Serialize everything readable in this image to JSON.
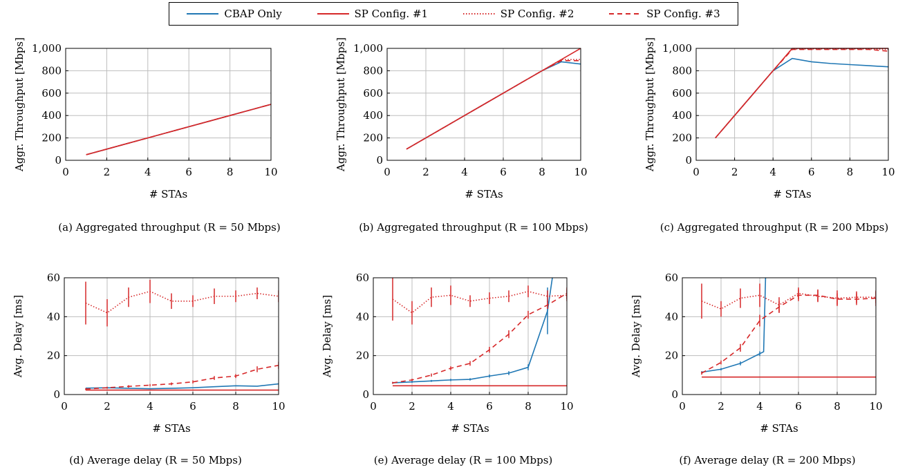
{
  "colors": {
    "blue": "#1f77b4",
    "red": "#d62728"
  },
  "legend": {
    "cbap": "CBAP Only",
    "sp1": "SP Config. #1",
    "sp2": "SP Config. #2",
    "sp3": "SP Config. #3"
  },
  "captions": {
    "a": "(a) Aggregated throughput (R = 50 Mbps)",
    "b": "(b) Aggregated throughput (R = 100 Mbps)",
    "c": "(c) Aggregated throughput (R = 200 Mbps)",
    "d": "(d) Average delay (R = 50 Mbps)",
    "e": "(e) Average delay (R = 100 Mbps)",
    "f": "(f) Average delay (R = 200 Mbps)"
  },
  "chart_data": [
    {
      "type": "line",
      "xlabel": "# STAs",
      "ylabel": "Aggr. Throughput [Mbps]",
      "xlim": [
        0,
        10
      ],
      "ylim": [
        0,
        1000
      ],
      "xticks": [
        0,
        2,
        4,
        6,
        8,
        10
      ],
      "yticks": [
        0,
        200,
        400,
        600,
        800,
        1000
      ],
      "ytick_labels": [
        "0",
        "200",
        "400",
        "600",
        "800",
        "1,000"
      ],
      "grid": true,
      "x": [
        1,
        2,
        3,
        4,
        5,
        6,
        7,
        8,
        9,
        10
      ],
      "series": [
        {
          "name": "CBAP Only",
          "style": "solid",
          "color": "blue",
          "values": [
            50,
            100,
            150,
            200,
            250,
            300,
            350,
            400,
            450,
            500
          ]
        },
        {
          "name": "SP Config. #1",
          "style": "solid",
          "color": "red",
          "values": [
            50,
            100,
            150,
            200,
            250,
            300,
            350,
            400,
            450,
            500
          ]
        },
        {
          "name": "SP Config. #2",
          "style": "dotted",
          "color": "red",
          "values": [
            50,
            100,
            150,
            200,
            250,
            300,
            350,
            400,
            450,
            500
          ]
        },
        {
          "name": "SP Config. #3",
          "style": "dashed",
          "color": "red",
          "values": [
            50,
            100,
            150,
            200,
            250,
            300,
            350,
            400,
            450,
            500
          ]
        }
      ]
    },
    {
      "type": "line",
      "xlabel": "# STAs",
      "ylabel": "Aggr. Throughput [Mbps]",
      "xlim": [
        0,
        10
      ],
      "ylim": [
        0,
        1000
      ],
      "xticks": [
        0,
        2,
        4,
        6,
        8,
        10
      ],
      "yticks": [
        0,
        200,
        400,
        600,
        800,
        1000
      ],
      "ytick_labels": [
        "0",
        "200",
        "400",
        "600",
        "800",
        "1,000"
      ],
      "grid": true,
      "x": [
        1,
        2,
        3,
        4,
        5,
        6,
        7,
        8,
        9,
        10
      ],
      "series": [
        {
          "name": "CBAP Only",
          "style": "solid",
          "color": "blue",
          "values": [
            100,
            200,
            300,
            400,
            500,
            600,
            700,
            800,
            880,
            860
          ]
        },
        {
          "name": "SP Config. #1",
          "style": "solid",
          "color": "red",
          "values": [
            100,
            200,
            300,
            400,
            500,
            600,
            700,
            800,
            900,
            1000
          ]
        },
        {
          "name": "SP Config. #2",
          "style": "dotted",
          "color": "red",
          "values": [
            100,
            200,
            300,
            400,
            500,
            600,
            700,
            800,
            900,
            900
          ]
        },
        {
          "name": "SP Config. #3",
          "style": "dashed",
          "color": "red",
          "values": [
            100,
            200,
            300,
            400,
            500,
            600,
            700,
            800,
            890,
            890
          ]
        }
      ]
    },
    {
      "type": "line",
      "xlabel": "# STAs",
      "ylabel": "Aggr. Throughput [Mbps]",
      "xlim": [
        0,
        10
      ],
      "ylim": [
        0,
        1000
      ],
      "xticks": [
        0,
        2,
        4,
        6,
        8,
        10
      ],
      "yticks": [
        0,
        200,
        400,
        600,
        800,
        1000
      ],
      "ytick_labels": [
        "0",
        "200",
        "400",
        "600",
        "800",
        "1,000"
      ],
      "grid": true,
      "x": [
        1,
        2,
        3,
        4,
        5,
        6,
        7,
        8,
        9,
        10
      ],
      "series": [
        {
          "name": "CBAP Only",
          "style": "solid",
          "color": "blue",
          "values": [
            200,
            400,
            600,
            800,
            910,
            880,
            865,
            855,
            845,
            835
          ]
        },
        {
          "name": "SP Config. #1",
          "style": "solid",
          "color": "red",
          "values": [
            200,
            400,
            600,
            800,
            1000,
            1000,
            1000,
            1000,
            1000,
            1000
          ]
        },
        {
          "name": "SP Config. #2",
          "style": "dotted",
          "color": "red",
          "values": [
            200,
            400,
            600,
            800,
            995,
            995,
            995,
            995,
            995,
            990
          ]
        },
        {
          "name": "SP Config. #3",
          "style": "dashed",
          "color": "red",
          "values": [
            200,
            400,
            600,
            800,
            990,
            990,
            990,
            990,
            990,
            975
          ]
        }
      ]
    },
    {
      "type": "line",
      "xlabel": "# STAs",
      "ylabel": "Avg. Delay [ms]",
      "xlim": [
        0,
        10
      ],
      "ylim": [
        0,
        60
      ],
      "xticks": [
        0,
        2,
        4,
        6,
        8,
        10
      ],
      "yticks": [
        0,
        20,
        40,
        60
      ],
      "ytick_labels": [
        "0",
        "20",
        "40",
        "60"
      ],
      "grid": true,
      "x": [
        1,
        2,
        3,
        4,
        5,
        6,
        7,
        8,
        9,
        10
      ],
      "series": [
        {
          "name": "CBAP Only",
          "style": "solid",
          "color": "blue",
          "values": [
            3.3,
            3.5,
            3.2,
            3.0,
            3.2,
            3.5,
            4.0,
            4.5,
            4.3,
            5.5
          ]
        },
        {
          "name": "SP Config. #1",
          "style": "solid",
          "color": "red",
          "values": [
            2.3,
            2.3,
            2.3,
            2.3,
            2.3,
            2.3,
            2.3,
            2.3,
            2.3,
            2.3
          ]
        },
        {
          "name": "SP Config. #2",
          "style": "dotted",
          "color": "red",
          "values": [
            47,
            42,
            50,
            53,
            48,
            48,
            50.5,
            50.5,
            52,
            50.5
          ],
          "err": [
            11,
            7,
            5,
            6,
            4,
            3,
            4,
            3,
            3,
            3
          ]
        },
        {
          "name": "SP Config. #3",
          "style": "dashed",
          "color": "red",
          "values": [
            2.8,
            3.5,
            4.2,
            4.8,
            5.5,
            6.5,
            8.5,
            9.5,
            13,
            15
          ],
          "err": [
            0.5,
            0.5,
            0.6,
            0.6,
            0.7,
            0.8,
            1,
            1,
            1.5,
            1.8
          ]
        }
      ]
    },
    {
      "type": "line",
      "xlabel": "# STAs",
      "ylabel": "Avg. Delay [ms]",
      "xlim": [
        0,
        10
      ],
      "ylim": [
        0,
        60
      ],
      "xticks": [
        0,
        2,
        4,
        6,
        8,
        10
      ],
      "yticks": [
        0,
        20,
        40,
        60
      ],
      "ytick_labels": [
        "0",
        "20",
        "40",
        "60"
      ],
      "grid": true,
      "x": [
        1,
        2,
        3,
        4,
        5,
        6,
        7,
        8,
        9,
        10
      ],
      "series": [
        {
          "name": "CBAP Only",
          "style": "solid",
          "color": "blue",
          "x": [
            1,
            2,
            3,
            4,
            5,
            6,
            7,
            8,
            9,
            9.25
          ],
          "values": [
            6,
            6.5,
            7,
            7.5,
            7.8,
            9.5,
            11,
            14,
            43,
            60
          ],
          "err": [
            0.5,
            0.5,
            0.5,
            0.6,
            0.6,
            0.8,
            1,
            1.5,
            12,
            0
          ]
        },
        {
          "name": "SP Config. #1",
          "style": "solid",
          "color": "red",
          "values": [
            4.5,
            4.5,
            4.5,
            4.5,
            4.5,
            4.5,
            4.5,
            4.5,
            4.5,
            4.5
          ]
        },
        {
          "name": "SP Config. #2",
          "style": "dotted",
          "color": "red",
          "values": [
            49,
            42,
            50,
            51,
            48,
            49.5,
            50.5,
            53,
            50.5,
            51
          ],
          "err": [
            11,
            6,
            5,
            5,
            3,
            3,
            3,
            3,
            3,
            3
          ]
        },
        {
          "name": "SP Config. #3",
          "style": "dashed",
          "color": "red",
          "values": [
            6,
            7.5,
            10,
            13.5,
            16,
            23,
            31,
            41,
            46,
            52
          ],
          "err": [
            0.5,
            0.6,
            0.8,
            1,
            1.2,
            1.5,
            2,
            2,
            2,
            3
          ]
        }
      ]
    },
    {
      "type": "line",
      "xlabel": "# STAs",
      "ylabel": "Avg. Delay [ms]",
      "xlim": [
        0,
        10
      ],
      "ylim": [
        0,
        60
      ],
      "xticks": [
        0,
        2,
        4,
        6,
        8,
        10
      ],
      "yticks": [
        0,
        20,
        40,
        60
      ],
      "ytick_labels": [
        "0",
        "20",
        "40",
        "60"
      ],
      "grid": true,
      "x": [
        1,
        2,
        3,
        4,
        5,
        6,
        7,
        8,
        9,
        10
      ],
      "series": [
        {
          "name": "CBAP Only",
          "style": "solid",
          "color": "blue",
          "x": [
            1,
            2,
            3,
            4,
            4.2,
            4.3
          ],
          "values": [
            11.5,
            13,
            16,
            21,
            22,
            60
          ],
          "err": [
            0.5,
            0.6,
            1,
            1.2,
            0,
            0
          ]
        },
        {
          "name": "SP Config. #1",
          "style": "solid",
          "color": "red",
          "values": [
            9,
            9,
            9,
            9,
            9,
            9,
            9,
            9,
            9,
            9
          ]
        },
        {
          "name": "SP Config. #2",
          "style": "dotted",
          "color": "red",
          "values": [
            48,
            44,
            49.5,
            51,
            46,
            52,
            50.5,
            49.5,
            50,
            50
          ],
          "err": [
            9,
            4,
            5,
            6,
            4,
            3,
            3,
            4,
            3,
            3
          ]
        },
        {
          "name": "SP Config. #3",
          "style": "dashed",
          "color": "red",
          "values": [
            11,
            16.5,
            24,
            38,
            45,
            51,
            51,
            49,
            49,
            49.5
          ],
          "err": [
            0.8,
            1,
            2,
            3,
            3,
            3,
            3,
            3,
            3,
            4
          ]
        }
      ]
    }
  ]
}
